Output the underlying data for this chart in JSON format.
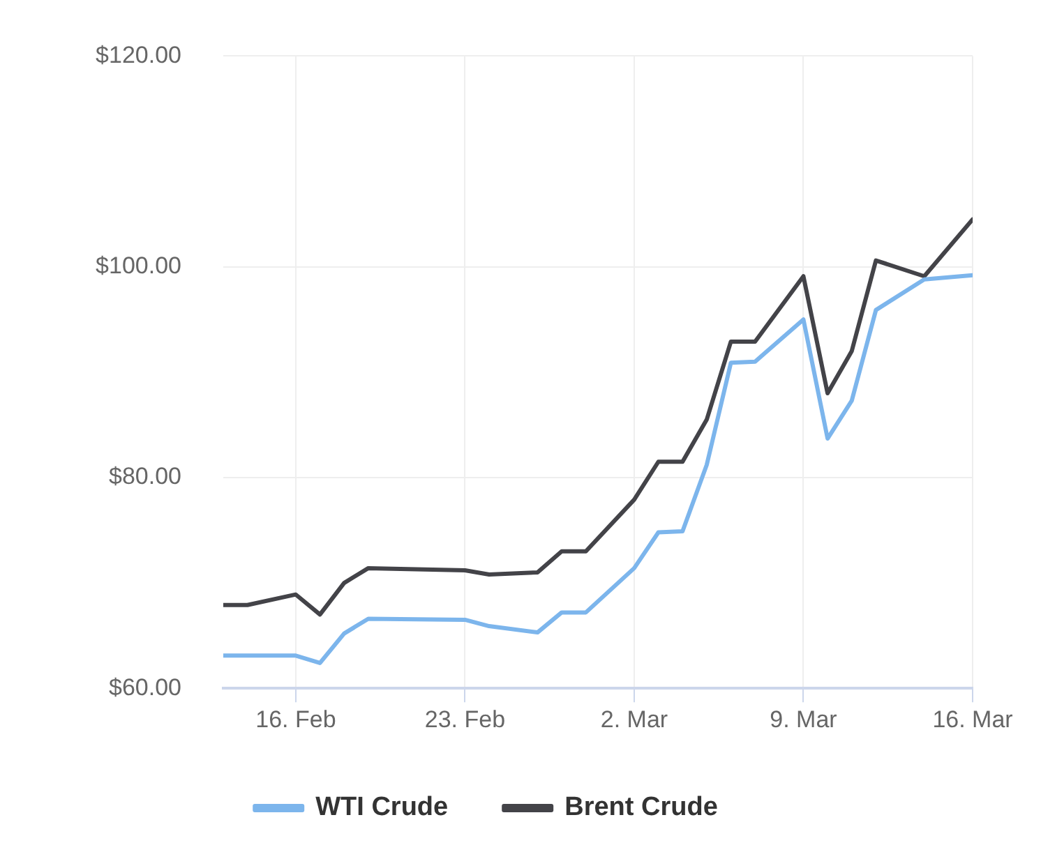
{
  "chart_data": {
    "type": "line",
    "x": [
      "--02-13",
      "--02-14",
      "--02-16",
      "--02-17",
      "--02-18",
      "--02-19",
      "--02-23",
      "--02-24",
      "--02-26",
      "--02-27",
      "--02-28",
      "--03-02",
      "--03-03",
      "--03-04",
      "--03-05",
      "--03-06",
      "--03-07",
      "--03-09",
      "--03-10",
      "--03-11",
      "--03-12",
      "--03-14",
      "--03-16"
    ],
    "series": [
      {
        "name": "WTI Crude",
        "color": "#7cb5ec",
        "values": [
          63.1,
          63.1,
          63.1,
          62.4,
          65.2,
          66.6,
          66.5,
          65.9,
          65.3,
          67.2,
          67.2,
          71.4,
          74.8,
          74.9,
          81.2,
          90.9,
          91.0,
          95.0,
          83.7,
          87.3,
          95.9,
          98.8,
          99.2
        ]
      },
      {
        "name": "Brent Crude",
        "color": "#434348",
        "values": [
          67.9,
          67.9,
          68.9,
          67.0,
          70.0,
          71.4,
          71.2,
          70.8,
          71.0,
          73.0,
          73.0,
          77.9,
          81.5,
          81.5,
          85.5,
          92.9,
          92.9,
          99.1,
          88.0,
          92.0,
          100.6,
          99.1,
          104.5
        ]
      }
    ],
    "xlim": [
      "--02-13",
      "--03-16"
    ],
    "xticks": [
      {
        "value": "--02-16",
        "label": "16. Feb"
      },
      {
        "value": "--02-23",
        "label": "23. Feb"
      },
      {
        "value": "--03-02",
        "label": "2. Mar"
      },
      {
        "value": "--03-09",
        "label": "9. Mar"
      },
      {
        "value": "--03-16",
        "label": "16. Mar"
      }
    ],
    "ylim": [
      60,
      120
    ],
    "yticks": [
      {
        "value": 60,
        "label": "$60.00"
      },
      {
        "value": 80,
        "label": "$80.00"
      },
      {
        "value": 100,
        "label": "$100.00"
      },
      {
        "value": 120,
        "label": "$120.00"
      }
    ],
    "grid": true,
    "legend": "bottom",
    "marker": "none",
    "line_style": "solid"
  }
}
